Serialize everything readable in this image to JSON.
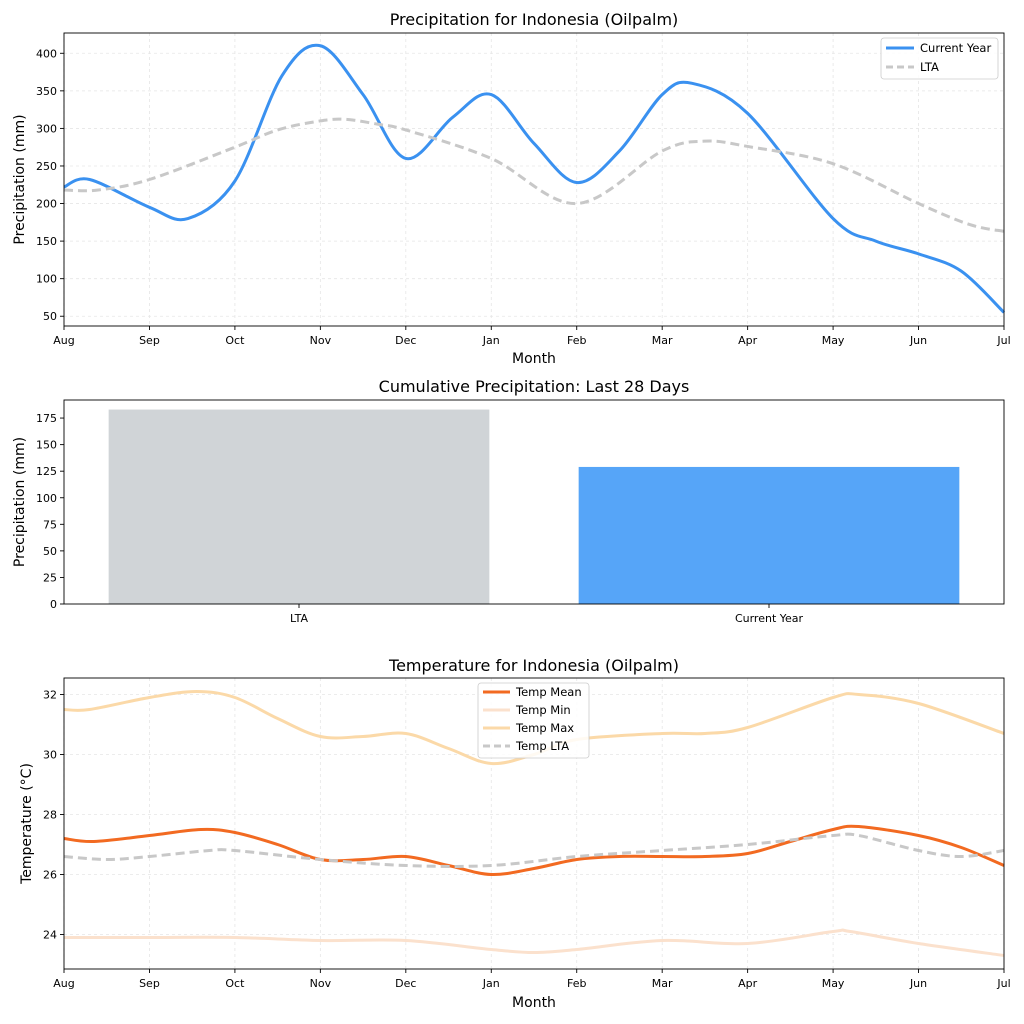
{
  "colors": {
    "current_year": "#3a91f0",
    "lta": "#c8c8c8",
    "bar_lta": "#d0d4d7",
    "bar_current": "#56a5f8",
    "temp_mean": "#f26a21",
    "temp_min": "#fbe1cd",
    "temp_max": "#fbd9a8",
    "temp_lta": "#c8c8c8"
  },
  "chart_data": [
    {
      "id": "precip",
      "type": "line",
      "title": "Precipitation for Indonesia (Oilpalm)",
      "xlabel": "Month",
      "ylabel": "Precipitation (mm)",
      "categories": [
        "Aug",
        "Sep",
        "Oct",
        "Nov",
        "Dec",
        "Jan",
        "Feb",
        "Mar",
        "Apr",
        "May",
        "Jun",
        "Jul"
      ],
      "xlim": [
        0,
        11
      ],
      "ylim": [
        37,
        427
      ],
      "yticks": [
        50,
        100,
        150,
        200,
        250,
        300,
        350,
        400
      ],
      "grid": true,
      "legend_position": "top-right",
      "series": [
        {
          "name": "Current Year",
          "style": "solid",
          "x": [
            0,
            0.3,
            1,
            1.45,
            2,
            2.55,
            3,
            3.5,
            4,
            4.55,
            5,
            5.5,
            6,
            6.5,
            7,
            7.35,
            8,
            9,
            9.5,
            10,
            10.5,
            11
          ],
          "y": [
            222,
            232,
            195,
            180,
            230,
            370,
            410,
            345,
            260,
            315,
            345,
            280,
            228,
            270,
            345,
            360,
            320,
            180,
            150,
            133,
            110,
            55
          ]
        },
        {
          "name": "LTA",
          "style": "dashed",
          "x": [
            0,
            0.4,
            1,
            2,
            2.5,
            3,
            3.3,
            3.7,
            4,
            5,
            6,
            7,
            7.5,
            8,
            9,
            10,
            10.6,
            11
          ],
          "y": [
            218,
            218,
            232,
            275,
            298,
            310,
            312,
            305,
            298,
            260,
            200,
            270,
            283,
            276,
            253,
            200,
            172,
            163
          ]
        }
      ]
    },
    {
      "id": "cumulative",
      "type": "bar",
      "title": "Cumulative Precipitation: Last 28 Days",
      "xlabel": "",
      "ylabel": "Precipitation (mm)",
      "categories": [
        "LTA",
        "Current Year"
      ],
      "values": [
        183,
        129
      ],
      "ylim": [
        0,
        192
      ],
      "yticks": [
        0,
        25,
        50,
        75,
        100,
        125,
        150,
        175
      ],
      "grid": false
    },
    {
      "id": "temp",
      "type": "line",
      "title": "Temperature for Indonesia (Oilpalm)",
      "xlabel": "Month",
      "ylabel": "Temperature (°C)",
      "categories": [
        "Aug",
        "Sep",
        "Oct",
        "Nov",
        "Dec",
        "Jan",
        "Feb",
        "Mar",
        "Apr",
        "May",
        "Jun",
        "Jul"
      ],
      "xlim": [
        0,
        11
      ],
      "ylim": [
        22.85,
        32.55
      ],
      "yticks": [
        24,
        26,
        28,
        30,
        32
      ],
      "grid": true,
      "legend_position": "upper-center",
      "series": [
        {
          "name": "Temp Mean",
          "style": "solid",
          "x": [
            0,
            0.35,
            1,
            1.6,
            2,
            2.5,
            3,
            3.5,
            4,
            4.5,
            5,
            5.5,
            6,
            6.5,
            7,
            7.5,
            8,
            8.5,
            9,
            9.3,
            10,
            10.5,
            11
          ],
          "y": [
            27.2,
            27.1,
            27.3,
            27.5,
            27.4,
            27.0,
            26.5,
            26.5,
            26.6,
            26.3,
            26.0,
            26.2,
            26.5,
            26.6,
            26.6,
            26.6,
            26.7,
            27.1,
            27.5,
            27.6,
            27.3,
            26.9,
            26.3
          ]
        },
        {
          "name": "Temp Min",
          "style": "solid",
          "x": [
            0,
            1,
            2,
            3,
            4,
            5,
            5.5,
            6,
            7,
            8,
            9,
            9.2,
            10,
            11
          ],
          "y": [
            23.9,
            23.9,
            23.9,
            23.8,
            23.8,
            23.5,
            23.4,
            23.5,
            23.8,
            23.7,
            24.1,
            24.1,
            23.7,
            23.3
          ]
        },
        {
          "name": "Temp Max",
          "style": "solid",
          "x": [
            0,
            0.3,
            1,
            1.55,
            2,
            2.5,
            3,
            3.5,
            4,
            4.5,
            5,
            5.5,
            6,
            7,
            7.5,
            8,
            9,
            9.3,
            10,
            11
          ],
          "y": [
            31.5,
            31.5,
            31.9,
            32.1,
            31.9,
            31.2,
            30.6,
            30.6,
            30.7,
            30.2,
            29.7,
            30.0,
            30.5,
            30.7,
            30.7,
            30.9,
            31.9,
            32.0,
            31.7,
            30.7
          ]
        },
        {
          "name": "Temp LTA",
          "style": "dashed",
          "x": [
            0,
            0.5,
            1,
            1.7,
            2,
            3,
            4,
            5,
            6,
            7,
            8,
            9,
            9.3,
            10,
            10.5,
            11
          ],
          "y": [
            26.6,
            26.5,
            26.6,
            26.8,
            26.8,
            26.5,
            26.3,
            26.3,
            26.6,
            26.8,
            27.0,
            27.3,
            27.3,
            26.8,
            26.6,
            26.8
          ]
        }
      ]
    }
  ]
}
